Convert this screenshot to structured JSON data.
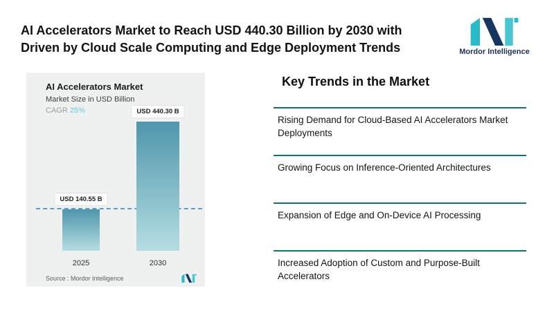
{
  "header": {
    "title_lines": [
      "AI Accelerators Market to Reach USD 440.30 Billion by 2030 with",
      "Driven by Cloud Scale Computing and Edge Deployment Trends"
    ],
    "brand": "Mordor Intelligence"
  },
  "chart": {
    "title": "AI Accelerators Market",
    "subtitle": "Market Size in USD Billion",
    "cagr_label": "CAGR",
    "cagr_value": "25%",
    "source": "Source :  Mordor Intelligence"
  },
  "chart_data": {
    "type": "bar",
    "title": "AI Accelerators Market",
    "ylabel": "Market Size in USD Billion",
    "categories": [
      "2025",
      "2030"
    ],
    "values": [
      140.55,
      440.3
    ],
    "value_labels": [
      "USD 140.55 B",
      "USD 440.30 B"
    ],
    "cagr_percent": 25,
    "ylim": [
      0,
      460
    ],
    "grid": false,
    "legend": "none",
    "reference_line_value": 140.55
  },
  "trends": {
    "heading": "Key Trends in the Market",
    "items": [
      "Rising Demand for Cloud-Based AI Accelerators Market Deployments",
      "Growing Focus on Inference-Oriented Architectures",
      "Expansion of Edge and On-Device AI Processing",
      "Increased Adoption of Custom and Purpose-Built Accelerators"
    ]
  },
  "colors": {
    "accent_teal": "#156f6d",
    "bar_top": "#4f96ac",
    "bar_bottom": "#b5dde1",
    "cagr_value": "#8fd3de",
    "dashed_line": "#5b9bd5",
    "panel_bg": "#eff1f0",
    "brand_navy": "#1c3253",
    "logo_teal": "#27bac9",
    "logo_light_teal": "#49c6d2",
    "logo_navy": "#16355f"
  }
}
